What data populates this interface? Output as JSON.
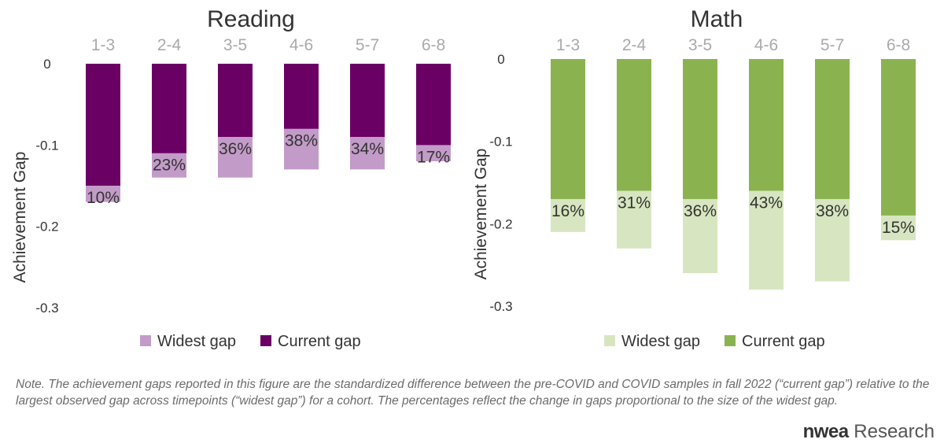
{
  "chart_data": [
    {
      "type": "bar",
      "title": "Reading",
      "ylabel": "Achievement Gap",
      "xlabel": "",
      "ylim": [
        -0.3,
        0
      ],
      "yticks": [
        "0",
        "-0.1",
        "-0.2",
        "-0.3"
      ],
      "categories": [
        "1-3",
        "2-4",
        "3-5",
        "4-6",
        "5-7",
        "6-8"
      ],
      "series": [
        {
          "name": "Widest gap",
          "values": [
            -0.17,
            -0.14,
            -0.14,
            -0.13,
            -0.13,
            -0.12
          ],
          "color": "#c39bc8"
        },
        {
          "name": "Current gap",
          "values": [
            -0.15,
            -0.11,
            -0.09,
            -0.08,
            -0.09,
            -0.1
          ],
          "color": "#6a0064"
        }
      ],
      "data_labels": [
        "10%",
        "23%",
        "36%",
        "38%",
        "34%",
        "17%"
      ],
      "legend_position": "bottom"
    },
    {
      "type": "bar",
      "title": "Math",
      "ylabel": "Achievement Gap",
      "xlabel": "",
      "ylim": [
        -0.3,
        0
      ],
      "yticks": [
        "0",
        "-0.1",
        "-0.2",
        "-0.3"
      ],
      "categories": [
        "1-3",
        "2-4",
        "3-5",
        "4-6",
        "5-7",
        "6-8"
      ],
      "series": [
        {
          "name": "Widest gap",
          "values": [
            -0.21,
            -0.23,
            -0.26,
            -0.28,
            -0.27,
            -0.22
          ],
          "color": "#d7e6c0"
        },
        {
          "name": "Current gap",
          "values": [
            -0.17,
            -0.16,
            -0.17,
            -0.16,
            -0.17,
            -0.19
          ],
          "color": "#8ab350"
        }
      ],
      "data_labels": [
        "16%",
        "31%",
        "36%",
        "43%",
        "38%",
        "15%"
      ],
      "legend_position": "bottom"
    }
  ],
  "note": "Note. The achievement gaps reported in this figure are the standardized difference between the pre-COVID and COVID samples in fall 2022 (“current gap”) relative to the largest observed gap across timepoints (“widest gap”) for a cohort. The percentages reflect the change in gaps proportional to the size of the widest gap.",
  "logo": {
    "mark": "nwea",
    "text": " Research"
  }
}
